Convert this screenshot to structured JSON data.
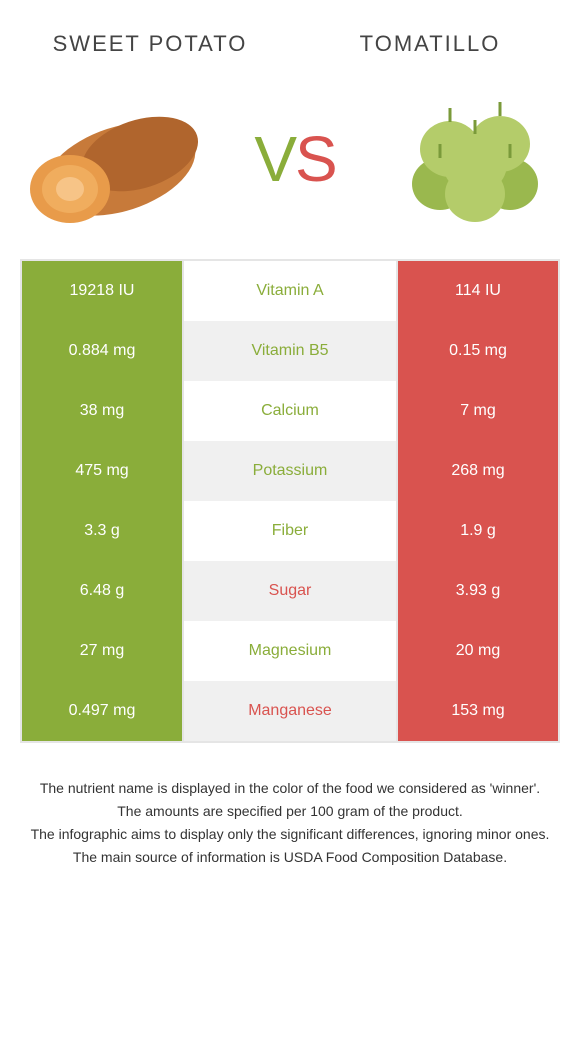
{
  "header": {
    "left_title": "Sweet potato",
    "right_title": "Tomatillo"
  },
  "vs": {
    "v": "V",
    "s": "S"
  },
  "colors": {
    "left_cell": "#8aad3a",
    "right_cell": "#d9534f",
    "left_text": "#8aad3a",
    "right_text": "#d9534f",
    "row_alt_bg": "#f0f0f0",
    "row_bg": "#ffffff",
    "border": "#e5e5e5"
  },
  "table": {
    "rows": [
      {
        "left": "19218 IU",
        "label": "Vitamin A",
        "right": "114 IU",
        "winner": "left"
      },
      {
        "left": "0.884 mg",
        "label": "Vitamin B5",
        "right": "0.15 mg",
        "winner": "left"
      },
      {
        "left": "38 mg",
        "label": "Calcium",
        "right": "7 mg",
        "winner": "left"
      },
      {
        "left": "475 mg",
        "label": "Potassium",
        "right": "268 mg",
        "winner": "left"
      },
      {
        "left": "3.3 g",
        "label": "Fiber",
        "right": "1.9 g",
        "winner": "left"
      },
      {
        "left": "6.48 g",
        "label": "Sugar",
        "right": "3.93 g",
        "winner": "right"
      },
      {
        "left": "27 mg",
        "label": "Magnesium",
        "right": "20 mg",
        "winner": "left"
      },
      {
        "left": "0.497 mg",
        "label": "Manganese",
        "right": "153 mg",
        "winner": "right"
      }
    ]
  },
  "notes": [
    "The nutrient name is displayed in the color of the food we considered as 'winner'.",
    "The amounts are specified per 100 gram of the product.",
    "The infographic aims to display only the significant differences, ignoring minor ones.",
    "The main source of information is USDA Food Composition Database."
  ]
}
